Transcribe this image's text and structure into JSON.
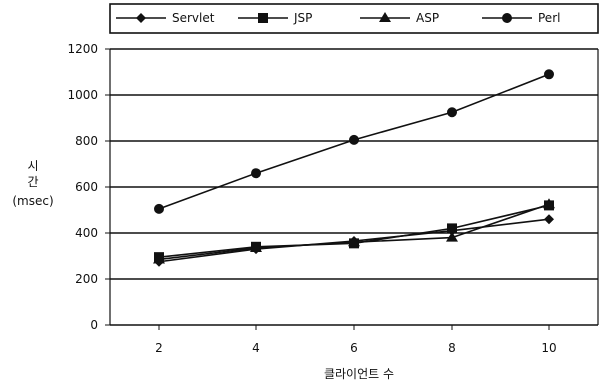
{
  "chart_data": {
    "type": "line",
    "title": "",
    "xlabel": "클라이언트 수",
    "ylabel": [
      "시",
      "간",
      "(msec)"
    ],
    "x": [
      2,
      4,
      6,
      8,
      10
    ],
    "x_ticks": [
      "2",
      "4",
      "6",
      "8",
      "10"
    ],
    "ylim": [
      0,
      1200
    ],
    "y_ticks": [
      "0",
      "200",
      "400",
      "600",
      "800",
      "1000",
      "1200"
    ],
    "grid": "horizontal",
    "legend_position": "top",
    "series": [
      {
        "name": "Servlet",
        "marker": "diamond",
        "values": [
          275,
          330,
          365,
          410,
          460
        ]
      },
      {
        "name": "JSP",
        "marker": "square",
        "values": [
          295,
          340,
          355,
          420,
          520
        ]
      },
      {
        "name": "ASP",
        "marker": "triangle",
        "values": [
          285,
          335,
          360,
          380,
          525
        ]
      },
      {
        "name": "Perl",
        "marker": "circle",
        "values": [
          505,
          660,
          805,
          925,
          1090
        ]
      }
    ],
    "colors": {
      "line": "#111111",
      "grid": "#111111",
      "background": "#ffffff"
    }
  }
}
